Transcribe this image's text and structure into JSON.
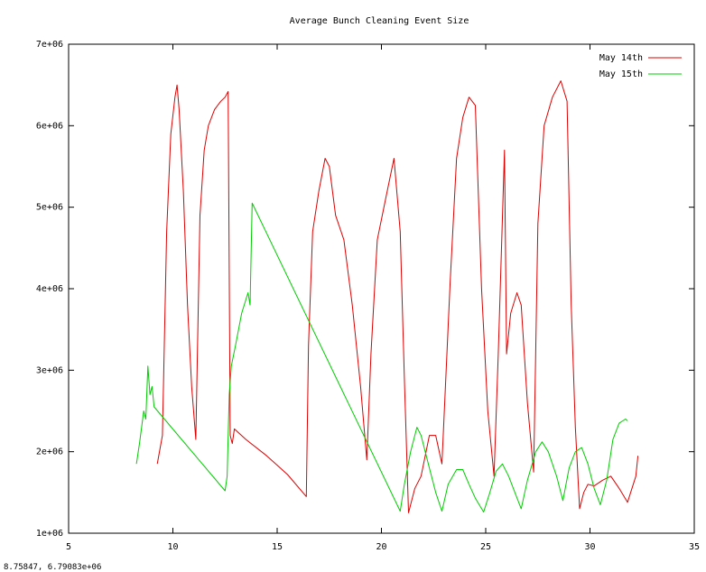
{
  "chart_data": {
    "type": "line",
    "title": "Average Bunch Cleaning Event Size",
    "xlabel": "",
    "ylabel": "",
    "xlim": [
      5,
      35
    ],
    "ylim": [
      1000000,
      7000000
    ],
    "x_ticks": [
      5,
      10,
      15,
      20,
      25,
      30,
      35
    ],
    "x_tick_labels": [
      "5",
      "10",
      "15",
      "20",
      "25",
      "30",
      "35"
    ],
    "y_ticks": [
      1000000,
      2000000,
      3000000,
      4000000,
      5000000,
      6000000,
      7000000
    ],
    "y_tick_labels": [
      "1e+06",
      "2e+06",
      "3e+06",
      "4e+06",
      "5e+06",
      "6e+06",
      "7e+06"
    ],
    "grid": false,
    "legend_position": "top-right",
    "series": [
      {
        "name": "May 14th",
        "color": "#dd0000",
        "x": [
          9.25,
          9.5,
          9.7,
          9.9,
          10.1,
          10.2,
          10.3,
          10.5,
          10.7,
          10.9,
          11.1,
          11.3,
          11.5,
          11.7,
          12.0,
          12.3,
          12.5,
          12.65,
          12.75,
          12.85,
          12.95,
          13.5,
          14.5,
          15.5,
          16.4,
          16.5,
          16.7,
          17.0,
          17.3,
          17.5,
          17.8,
          18.2,
          18.6,
          19.0,
          19.3,
          19.5,
          19.8,
          20.2,
          20.6,
          20.9,
          21.1,
          21.3,
          21.6,
          21.9,
          22.3,
          22.6,
          22.9,
          23.3,
          23.6,
          23.9,
          24.2,
          24.5,
          24.8,
          25.1,
          25.4,
          25.6,
          25.9,
          26.0,
          26.2,
          26.5,
          26.7,
          27.0,
          27.3,
          27.5,
          27.8,
          28.2,
          28.6,
          28.9,
          29.1,
          29.3,
          29.5,
          29.7,
          29.9,
          30.2,
          30.6,
          31.0,
          31.4,
          31.8,
          32.2,
          32.3
        ],
        "values": [
          1850000,
          2200000,
          4700000,
          5900000,
          6350000,
          6500000,
          6200000,
          5200000,
          3800000,
          2800000,
          2150000,
          4900000,
          5700000,
          6000000,
          6200000,
          6300000,
          6350000,
          6420000,
          2200000,
          2100000,
          2280000,
          2150000,
          1950000,
          1720000,
          1450000,
          3300000,
          4700000,
          5200000,
          5600000,
          5500000,
          4900000,
          4600000,
          3800000,
          2800000,
          1900000,
          3200000,
          4600000,
          5100000,
          5600000,
          4700000,
          2900000,
          1250000,
          1550000,
          1700000,
          2200000,
          2200000,
          1850000,
          4100000,
          5600000,
          6100000,
          6350000,
          6250000,
          4000000,
          2500000,
          1700000,
          3200000,
          5700000,
          3200000,
          3700000,
          3950000,
          3800000,
          2600000,
          1750000,
          4800000,
          6000000,
          6350000,
          6550000,
          6300000,
          3800000,
          2300000,
          1300000,
          1500000,
          1600000,
          1580000,
          1650000,
          1700000,
          1550000,
          1380000,
          1700000,
          1950000
        ]
      },
      {
        "name": "May 15th",
        "color": "#00cc00",
        "x": [
          8.25,
          8.4,
          8.6,
          8.7,
          8.8,
          8.9,
          9.0,
          9.1,
          12.5,
          12.6,
          12.7,
          12.8,
          13.0,
          13.3,
          13.6,
          13.7,
          13.8,
          20.9,
          21.1,
          21.4,
          21.7,
          21.9,
          22.2,
          22.6,
          22.9,
          23.2,
          23.6,
          23.9,
          24.2,
          24.5,
          24.9,
          25.2,
          25.5,
          25.8,
          26.1,
          26.4,
          26.7,
          27.0,
          27.4,
          27.7,
          28.0,
          28.4,
          28.7,
          29.0,
          29.3,
          29.6,
          29.9,
          30.2,
          30.5,
          30.8,
          31.1,
          31.4,
          31.7,
          31.8
        ],
        "values": [
          1850000,
          2100000,
          2500000,
          2400000,
          3050000,
          2700000,
          2800000,
          2550000,
          1520000,
          1700000,
          2700000,
          3050000,
          3300000,
          3700000,
          3950000,
          3800000,
          5050000,
          1270000,
          1600000,
          2000000,
          2300000,
          2200000,
          1900000,
          1500000,
          1270000,
          1600000,
          1780000,
          1780000,
          1600000,
          1430000,
          1260000,
          1500000,
          1760000,
          1850000,
          1700000,
          1500000,
          1300000,
          1650000,
          2000000,
          2120000,
          2000000,
          1700000,
          1400000,
          1800000,
          2000000,
          2050000,
          1850000,
          1550000,
          1350000,
          1650000,
          2150000,
          2350000,
          2400000,
          2380000
        ]
      }
    ]
  },
  "footer": {
    "coordinate_readout": "8.75847, 6.79083e+06"
  }
}
